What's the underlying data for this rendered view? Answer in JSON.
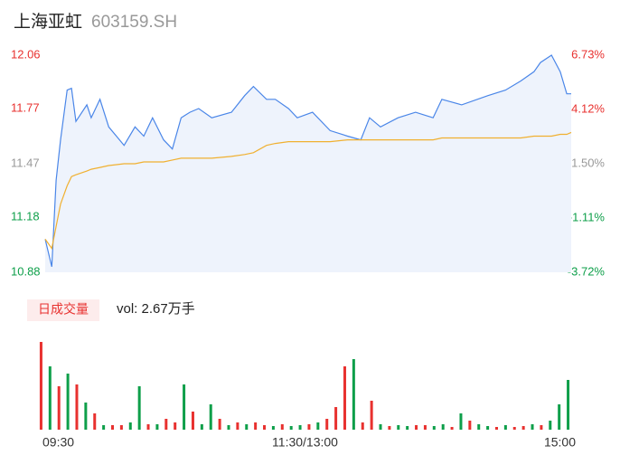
{
  "header": {
    "name": "上海亚虹",
    "code": "603159.SH"
  },
  "chart_data": [
    {
      "type": "line",
      "x": [
        0,
        3,
        5,
        7,
        10,
        12,
        14,
        19,
        21,
        25,
        29,
        36,
        41,
        45,
        49,
        54,
        58,
        62,
        66,
        70,
        76,
        85,
        91,
        95,
        101,
        105,
        111,
        115,
        122,
        130,
        138,
        144,
        148,
        153,
        161,
        169,
        177,
        181,
        190,
        202,
        210,
        217,
        223,
        226,
        231,
        235,
        238,
        240
      ],
      "xlim": [
        0,
        240
      ],
      "xticks": [
        {
          "value": 0,
          "label": "09:30"
        },
        {
          "value": 120,
          "label": "11:30/13:00"
        },
        {
          "value": 240,
          "label": "15:00"
        }
      ],
      "series": [
        {
          "name": "价格",
          "color": "#4a86e8",
          "fill": "#eef3fc",
          "values": [
            11.06,
            10.91,
            11.38,
            11.6,
            11.87,
            11.88,
            11.7,
            11.79,
            11.72,
            11.82,
            11.67,
            11.57,
            11.67,
            11.62,
            11.72,
            11.6,
            11.55,
            11.72,
            11.75,
            11.77,
            11.72,
            11.75,
            11.84,
            11.89,
            11.82,
            11.82,
            11.77,
            11.72,
            11.75,
            11.65,
            11.62,
            11.6,
            11.72,
            11.67,
            11.72,
            11.75,
            11.72,
            11.82,
            11.79,
            11.84,
            11.87,
            11.92,
            11.97,
            12.02,
            12.06,
            11.97,
            11.85,
            11.85
          ]
        },
        {
          "name": "均价",
          "color": "#f0b030",
          "values": [
            11.06,
            11.01,
            11.13,
            11.25,
            11.35,
            11.4,
            11.41,
            11.43,
            11.44,
            11.45,
            11.46,
            11.47,
            11.47,
            11.48,
            11.48,
            11.48,
            11.49,
            11.5,
            11.5,
            11.5,
            11.5,
            11.51,
            11.52,
            11.53,
            11.57,
            11.58,
            11.59,
            11.59,
            11.59,
            11.59,
            11.6,
            11.6,
            11.6,
            11.6,
            11.6,
            11.6,
            11.6,
            11.61,
            11.61,
            11.61,
            11.61,
            11.61,
            11.62,
            11.62,
            11.62,
            11.63,
            11.63,
            11.64
          ]
        }
      ],
      "ylim": [
        10.88,
        12.06
      ],
      "yticks": [
        12.06,
        11.77,
        11.47,
        11.18,
        10.88
      ],
      "y2lim": [
        -3.72,
        6.73
      ],
      "y2ticks": [
        {
          "value": 6.73,
          "label": "6.73%"
        },
        {
          "value": 4.12,
          "label": "4.12%"
        },
        {
          "value": 1.5,
          "label": "1.50%"
        },
        {
          "value": -1.11,
          "label": "-1.11%"
        },
        {
          "value": -3.72,
          "label": "-3.72%"
        }
      ],
      "tick_colors": [
        "#e8312f",
        "#e8312f",
        "#999999",
        "#0e9f4a",
        "#0e9f4a"
      ]
    },
    {
      "type": "bar",
      "title": "日成交量",
      "subtitle": "vol: 2.67万手",
      "xlim": [
        0,
        240
      ],
      "xticks": [
        {
          "value": 0,
          "label": "09:30"
        },
        {
          "value": 120,
          "label": "11:30/13:00"
        },
        {
          "value": 240,
          "label": "15:00"
        }
      ],
      "ylim": [
        0,
        100
      ],
      "values": [
        97,
        70,
        48,
        62,
        50,
        30,
        18,
        5,
        5,
        5,
        8,
        48,
        6,
        6,
        12,
        8,
        50,
        20,
        6,
        28,
        12,
        5,
        8,
        6,
        8,
        5,
        4,
        6,
        4,
        5,
        6,
        8,
        12,
        25,
        70,
        78,
        8,
        32,
        6,
        4,
        5,
        4,
        5,
        5,
        4,
        6,
        3,
        18,
        10,
        6,
        4,
        3,
        5,
        3,
        4,
        6,
        5,
        10,
        28,
        55
      ],
      "colors": [
        "#e8312f",
        "#0e9f4a",
        "#e8312f",
        "#0e9f4a",
        "#e8312f",
        "#0e9f4a",
        "#e8312f",
        "#0e9f4a",
        "#e8312f",
        "#e8312f",
        "#0e9f4a",
        "#0e9f4a",
        "#e8312f",
        "#0e9f4a",
        "#e8312f",
        "#e8312f",
        "#0e9f4a",
        "#e8312f",
        "#0e9f4a",
        "#0e9f4a",
        "#e8312f",
        "#0e9f4a",
        "#e8312f",
        "#0e9f4a",
        "#e8312f",
        "#e8312f",
        "#0e9f4a",
        "#e8312f",
        "#0e9f4a",
        "#0e9f4a",
        "#e8312f",
        "#0e9f4a",
        "#e8312f",
        "#e8312f",
        "#e8312f",
        "#0e9f4a",
        "#e8312f",
        "#e8312f",
        "#0e9f4a",
        "#e8312f",
        "#0e9f4a",
        "#0e9f4a",
        "#e8312f",
        "#e8312f",
        "#0e9f4a",
        "#0e9f4a",
        "#e8312f",
        "#0e9f4a",
        "#e8312f",
        "#0e9f4a",
        "#0e9f4a",
        "#e8312f",
        "#0e9f4a",
        "#e8312f",
        "#e8312f",
        "#0e9f4a",
        "#e8312f",
        "#0e9f4a",
        "#0e9f4a",
        "#0e9f4a"
      ]
    }
  ]
}
